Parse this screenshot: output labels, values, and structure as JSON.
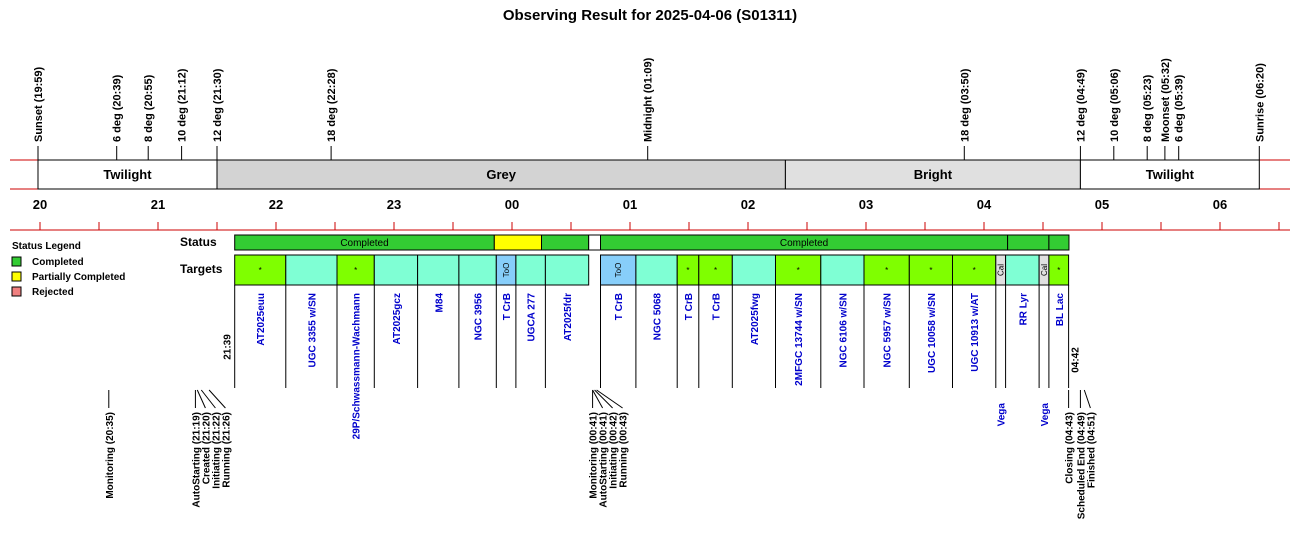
{
  "chart_data": {
    "type": "timeline",
    "title": "Observing Result for 2025-04-06 (S01311)",
    "time_axis": {
      "ticks": [
        "20",
        "21",
        "22",
        "23",
        "00",
        "01",
        "02",
        "03",
        "04",
        "05",
        "06"
      ]
    },
    "events": [
      {
        "label": "Sunset (19:59)",
        "t": 19.983,
        "color": "#000000"
      },
      {
        "label": "6 deg (20:39)",
        "t": 20.65,
        "color": "#000000"
      },
      {
        "label": "8 deg (20:55)",
        "t": 20.917,
        "color": "#000000"
      },
      {
        "label": "10 deg (21:12)",
        "t": 21.2,
        "color": "#000000"
      },
      {
        "label": "12 deg (21:30)",
        "t": 21.5,
        "color": "#000000"
      },
      {
        "label": "18 deg (22:28)",
        "t": 22.467,
        "color": "#000000"
      },
      {
        "label": "Midnight (01:09)",
        "t": 25.15,
        "color": "#000000"
      },
      {
        "label": "18 deg (03:50)",
        "t": 27.833,
        "color": "#000000"
      },
      {
        "label": "12 deg (04:49)",
        "t": 28.817,
        "color": "#000000"
      },
      {
        "label": "10 deg (05:06)",
        "t": 29.1,
        "color": "#000000"
      },
      {
        "label": "8 deg (05:23)",
        "t": 29.383,
        "color": "#000000"
      },
      {
        "label": "Moonset (05:32)",
        "t": 29.533,
        "color": "#0000cc"
      },
      {
        "label": "6 deg (05:39)",
        "t": 29.65,
        "color": "#000000"
      },
      {
        "label": "Sunrise (06:20)",
        "t": 30.333,
        "color": "#000000"
      }
    ],
    "bands": [
      {
        "label": "Twilight",
        "start": 19.983,
        "end": 21.5,
        "color": "#ffffff"
      },
      {
        "label": "Grey",
        "start": 21.5,
        "end": 26.317,
        "color": "#d3d3d3"
      },
      {
        "label": "Bright",
        "start": 26.317,
        "end": 28.817,
        "color": "#e0e0e0"
      },
      {
        "label": "Twilight",
        "start": 28.817,
        "end": 30.333,
        "color": "#ffffff"
      }
    ],
    "rows": {
      "status": "Status",
      "targets": "Targets"
    },
    "status_segments": [
      {
        "label": "Completed",
        "start": 21.65,
        "end": 23.85,
        "color": "#33cc33"
      },
      {
        "label": "",
        "start": 23.85,
        "end": 24.25,
        "color": "#ffff00"
      },
      {
        "label": "",
        "start": 24.25,
        "end": 24.65,
        "color": "#33cc33"
      },
      {
        "label": "",
        "start": 24.65,
        "end": 24.75,
        "color": "#ffffff"
      },
      {
        "label": "Completed",
        "start": 24.75,
        "end": 28.2,
        "color": "#33cc33"
      },
      {
        "label": "",
        "start": 28.2,
        "end": 28.55,
        "color": "#33cc33"
      },
      {
        "label": "",
        "start": 28.55,
        "end": 28.72,
        "color": "#33cc33"
      }
    ],
    "targets": [
      {
        "name": "AT2025euu",
        "start": 21.65,
        "end": 22.083,
        "color": "#7fff00",
        "mark": "*"
      },
      {
        "name": "UGC 3355 w/SN",
        "start": 22.083,
        "end": 22.517,
        "color": "#7fffd4",
        "mark": ""
      },
      {
        "name": "29P/Schwassmann-Wachmann",
        "start": 22.517,
        "end": 22.833,
        "color": "#7fff00",
        "mark": "*"
      },
      {
        "name": "AT2025gcz",
        "start": 22.833,
        "end": 23.2,
        "color": "#7fffd4",
        "mark": ""
      },
      {
        "name": "M84",
        "start": 23.2,
        "end": 23.55,
        "color": "#7fffd4",
        "mark": ""
      },
      {
        "name": "NGC 3956",
        "start": 23.55,
        "end": 23.867,
        "color": "#7fffd4",
        "mark": ""
      },
      {
        "name": "T CrB",
        "start": 23.867,
        "end": 24.033,
        "color": "#87cefa",
        "mark": "ToO"
      },
      {
        "name": "UGCA 277",
        "start": 24.033,
        "end": 24.283,
        "color": "#7fffd4",
        "mark": ""
      },
      {
        "name": "AT2025fdr",
        "start": 24.283,
        "end": 24.65,
        "color": "#7fffd4",
        "mark": ""
      },
      {
        "name": "T CrB",
        "start": 24.75,
        "end": 25.05,
        "color": "#87cefa",
        "mark": "ToO"
      },
      {
        "name": "NGC 5068",
        "start": 25.05,
        "end": 25.4,
        "color": "#7fffd4",
        "mark": ""
      },
      {
        "name": "T CrB",
        "start": 25.4,
        "end": 25.583,
        "color": "#7fff00",
        "mark": "*"
      },
      {
        "name": "T CrB",
        "start": 25.583,
        "end": 25.867,
        "color": "#7fff00",
        "mark": "*"
      },
      {
        "name": "AT2025fwg",
        "start": 25.867,
        "end": 26.233,
        "color": "#7fffd4",
        "mark": ""
      },
      {
        "name": "2MFGC 13744 w/SN",
        "start": 26.233,
        "end": 26.617,
        "color": "#7fff00",
        "mark": "*"
      },
      {
        "name": "NGC 6106 w/SN",
        "start": 26.617,
        "end": 26.983,
        "color": "#7fffd4",
        "mark": ""
      },
      {
        "name": "NGC 5957 w/SN",
        "start": 26.983,
        "end": 27.367,
        "color": "#7fff00",
        "mark": "*"
      },
      {
        "name": "UGC 10058 w/SN",
        "start": 27.367,
        "end": 27.733,
        "color": "#7fff00",
        "mark": "*"
      },
      {
        "name": "UGC 10913 w/AT",
        "start": 27.733,
        "end": 28.1,
        "color": "#7fff00",
        "mark": "*"
      },
      {
        "name": "Vega",
        "start": 28.1,
        "end": 28.183,
        "color": "#e0e0e0",
        "mark": "Cal"
      },
      {
        "name": "RR Lyr",
        "start": 28.183,
        "end": 28.467,
        "color": "#7fffd4",
        "mark": ""
      },
      {
        "name": "Vega",
        "start": 28.467,
        "end": 28.55,
        "color": "#e0e0e0",
        "mark": "Cal"
      },
      {
        "name": "BL Lac",
        "start": 28.55,
        "end": 28.717,
        "color": "#7fff00",
        "mark": "*"
      }
    ],
    "start_label": {
      "label": "21:39",
      "t": 21.65
    },
    "end_label": {
      "label": "04:42",
      "t": 28.7
    },
    "log_events": [
      {
        "label": "Monitoring (20:35)",
        "t": 20.583
      },
      {
        "label": "AutoStarting (21:19)",
        "t": 21.317
      },
      {
        "label": "Created (21:20)",
        "t": 21.333
      },
      {
        "label": "Initiating (21:22)",
        "t": 21.367
      },
      {
        "label": "Running (21:26)",
        "t": 21.433
      },
      {
        "label": "Monitoring (00:41)",
        "t": 24.683
      },
      {
        "label": "AutoStarting (00:41)",
        "t": 24.683
      },
      {
        "label": "Initiating (00:42)",
        "t": 24.7
      },
      {
        "label": "Running (00:43)",
        "t": 24.717
      },
      {
        "label": "Closing (04:43)",
        "t": 28.717
      },
      {
        "label": "Scheduled End (04:49)",
        "t": 28.817
      },
      {
        "label": "Finished (04:51)",
        "t": 28.85
      }
    ],
    "legend": {
      "title": "Status Legend",
      "placement": "left",
      "items": [
        {
          "label": "Completed",
          "color": "#33cc33"
        },
        {
          "label": "Partially Completed",
          "color": "#ffff00"
        },
        {
          "label": "Rejected",
          "color": "#f08080"
        }
      ]
    }
  }
}
